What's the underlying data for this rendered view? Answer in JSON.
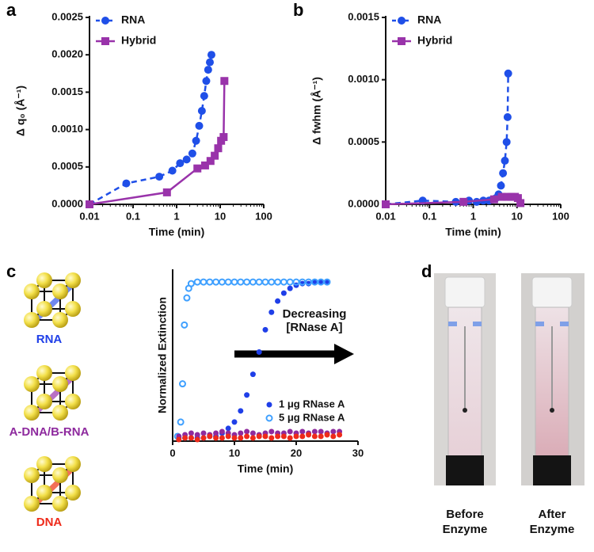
{
  "panel_labels": [
    "a",
    "b",
    "c",
    "d"
  ],
  "chart_data": [
    {
      "type": "line",
      "xlabel": "Time (min)",
      "ylabel": "Δ q₀ (Å⁻¹)",
      "xscale": "log",
      "xlim": [
        0.01,
        100
      ],
      "xticks": [
        0.01,
        0.1,
        1,
        10,
        100
      ],
      "ylim": [
        0,
        0.0025
      ],
      "yticks": [
        {
          "value": 0,
          "label": "0.0000"
        },
        {
          "value": 0.0005,
          "label": "0.0005"
        },
        {
          "value": 0.001,
          "label": "0.0010"
        },
        {
          "value": 0.0015,
          "label": "0.0015"
        },
        {
          "value": 0.002,
          "label": "0.0020"
        },
        {
          "value": 0.0025,
          "label": "0.0025"
        }
      ],
      "legend": "top-left",
      "series": [
        {
          "name": "RNA",
          "color": "#1f4fe8",
          "line_style": "dashed",
          "marker": "circle",
          "x": [
            0.01,
            0.07,
            0.4,
            0.8,
            1.2,
            1.7,
            2.3,
            2.8,
            3.3,
            3.8,
            4.3,
            4.8,
            5.3,
            5.8,
            6.3
          ],
          "values": [
            0,
            0.00028,
            0.00037,
            0.00045,
            0.00055,
            0.0006,
            0.00068,
            0.00085,
            0.00105,
            0.00125,
            0.00145,
            0.00165,
            0.0018,
            0.0019,
            0.002
          ]
        },
        {
          "name": "Hybrid",
          "color": "#9933aa",
          "line_style": "solid",
          "marker": "square",
          "x": [
            0.01,
            0.6,
            3,
            4.5,
            6,
            7.5,
            9,
            10.5,
            12,
            12.5
          ],
          "values": [
            0,
            0.00016,
            0.00048,
            0.00052,
            0.00058,
            0.00065,
            0.00075,
            0.00085,
            0.0009,
            0.00165
          ]
        }
      ]
    },
    {
      "type": "line",
      "xlabel": "Time (min)",
      "ylabel": "Δ fwhm (Å⁻¹)",
      "xscale": "log",
      "xlim": [
        0.01,
        100
      ],
      "xticks": [
        0.01,
        0.1,
        1,
        10,
        100
      ],
      "ylim": [
        0,
        0.0015
      ],
      "yticks": [
        {
          "value": 0,
          "label": "0.0000"
        },
        {
          "value": 0.0005,
          "label": "0.0005"
        },
        {
          "value": 0.001,
          "label": "0.0010"
        },
        {
          "value": 0.0015,
          "label": "0.0015"
        }
      ],
      "legend": "top-left",
      "series": [
        {
          "name": "RNA",
          "color": "#1f4fe8",
          "line_style": "dashed",
          "marker": "circle",
          "x": [
            0.01,
            0.07,
            0.4,
            0.8,
            1.2,
            1.7,
            2.3,
            2.8,
            3.3,
            3.8,
            4.3,
            4.8,
            5.3,
            5.8,
            6.1,
            6.3
          ],
          "values": [
            0,
            3e-05,
            2e-05,
            3e-05,
            2e-05,
            3e-05,
            3e-05,
            4e-05,
            5e-05,
            8e-05,
            0.00015,
            0.00025,
            0.00035,
            0.0005,
            0.0007,
            0.00105
          ]
        },
        {
          "name": "Hybrid",
          "color": "#9933aa",
          "line_style": "solid",
          "marker": "square",
          "x": [
            0.01,
            0.6,
            3,
            4.5,
            6,
            7.5,
            9,
            10.5,
            12
          ],
          "values": [
            0,
            2e-05,
            4e-05,
            6e-05,
            6e-05,
            6e-05,
            6e-05,
            5e-05,
            1e-05
          ]
        }
      ]
    },
    {
      "type": "scatter",
      "xlabel": "Time (min)",
      "ylabel": "Normalized Extinction",
      "xlim": [
        0,
        30
      ],
      "xticks": [
        0,
        10,
        20,
        30
      ],
      "ylim": [
        0,
        1.08
      ],
      "legend": "lower-right",
      "annotation": "Decreasing [RNase A]",
      "series": [
        {
          "name": "1 μg RNase A",
          "color": "#1f3fe8",
          "line_style": "none",
          "marker": "circle",
          "x": [
            1,
            2,
            3,
            4,
            5,
            6,
            7,
            8,
            9,
            10,
            11,
            12,
            13,
            14,
            15,
            16,
            17,
            18,
            19,
            20,
            21,
            22,
            23,
            24,
            25
          ],
          "values": [
            0.02,
            0.02,
            0.02,
            0.02,
            0.02,
            0.03,
            0.03,
            0.05,
            0.08,
            0.12,
            0.19,
            0.29,
            0.42,
            0.56,
            0.7,
            0.81,
            0.88,
            0.93,
            0.96,
            0.98,
            0.99,
            0.99,
            1,
            1,
            1
          ]
        },
        {
          "name": "5 μg RNase A",
          "color": "#3fa0ff",
          "line_style": "none",
          "marker": "open-circle",
          "x": [
            0.8,
            1.3,
            1.6,
            1.9,
            2.3,
            2.6,
            3,
            4,
            5,
            6,
            7,
            8,
            9,
            10,
            11,
            12,
            13,
            14,
            15,
            16,
            17,
            18,
            19,
            20,
            21,
            22,
            23,
            24,
            25
          ],
          "values": [
            0.03,
            0.12,
            0.36,
            0.73,
            0.9,
            0.96,
            0.99,
            1,
            1,
            1,
            1,
            1,
            1,
            1,
            1,
            1,
            1,
            1,
            1,
            1,
            1,
            1,
            1,
            1,
            1,
            1,
            1,
            1,
            1
          ]
        },
        {
          "color": "#8e2a9e",
          "line_style": "none",
          "marker": "circle",
          "x": [
            1,
            2,
            3,
            4,
            5,
            6,
            7,
            8,
            9,
            10,
            11,
            12,
            13,
            14,
            15,
            16,
            17,
            18,
            19,
            20,
            21,
            22,
            23,
            24,
            25,
            26,
            27
          ],
          "values": [
            0.03,
            0.04,
            0.05,
            0.04,
            0.05,
            0.04,
            0.05,
            0.06,
            0.05,
            0.04,
            0.05,
            0.06,
            0.05,
            0.04,
            0.05,
            0.06,
            0.05,
            0.05,
            0.06,
            0.05,
            0.06,
            0.05,
            0.06,
            0.06,
            0.05,
            0.06,
            0.06
          ]
        },
        {
          "color": "#ee2a1a",
          "line_style": "none",
          "marker": "circle",
          "x": [
            1,
            2,
            3,
            4,
            5,
            6,
            7,
            8,
            9,
            10,
            11,
            12,
            13,
            14,
            15,
            16,
            17,
            18,
            19,
            20,
            21,
            22,
            23,
            24,
            25,
            26,
            27
          ],
          "values": [
            0.01,
            0.02,
            0.02,
            0.01,
            0.02,
            0.03,
            0.02,
            0.02,
            0.03,
            0.02,
            0.02,
            0.03,
            0.02,
            0.03,
            0.03,
            0.02,
            0.03,
            0.03,
            0.02,
            0.03,
            0.03,
            0.04,
            0.03,
            0.03,
            0.04,
            0.03,
            0.04
          ]
        }
      ]
    }
  ],
  "structures": [
    "RNA",
    "A-DNA/B-RNA",
    "DNA"
  ],
  "photo_labels": [
    "Before Enzyme",
    "After Enzyme"
  ]
}
